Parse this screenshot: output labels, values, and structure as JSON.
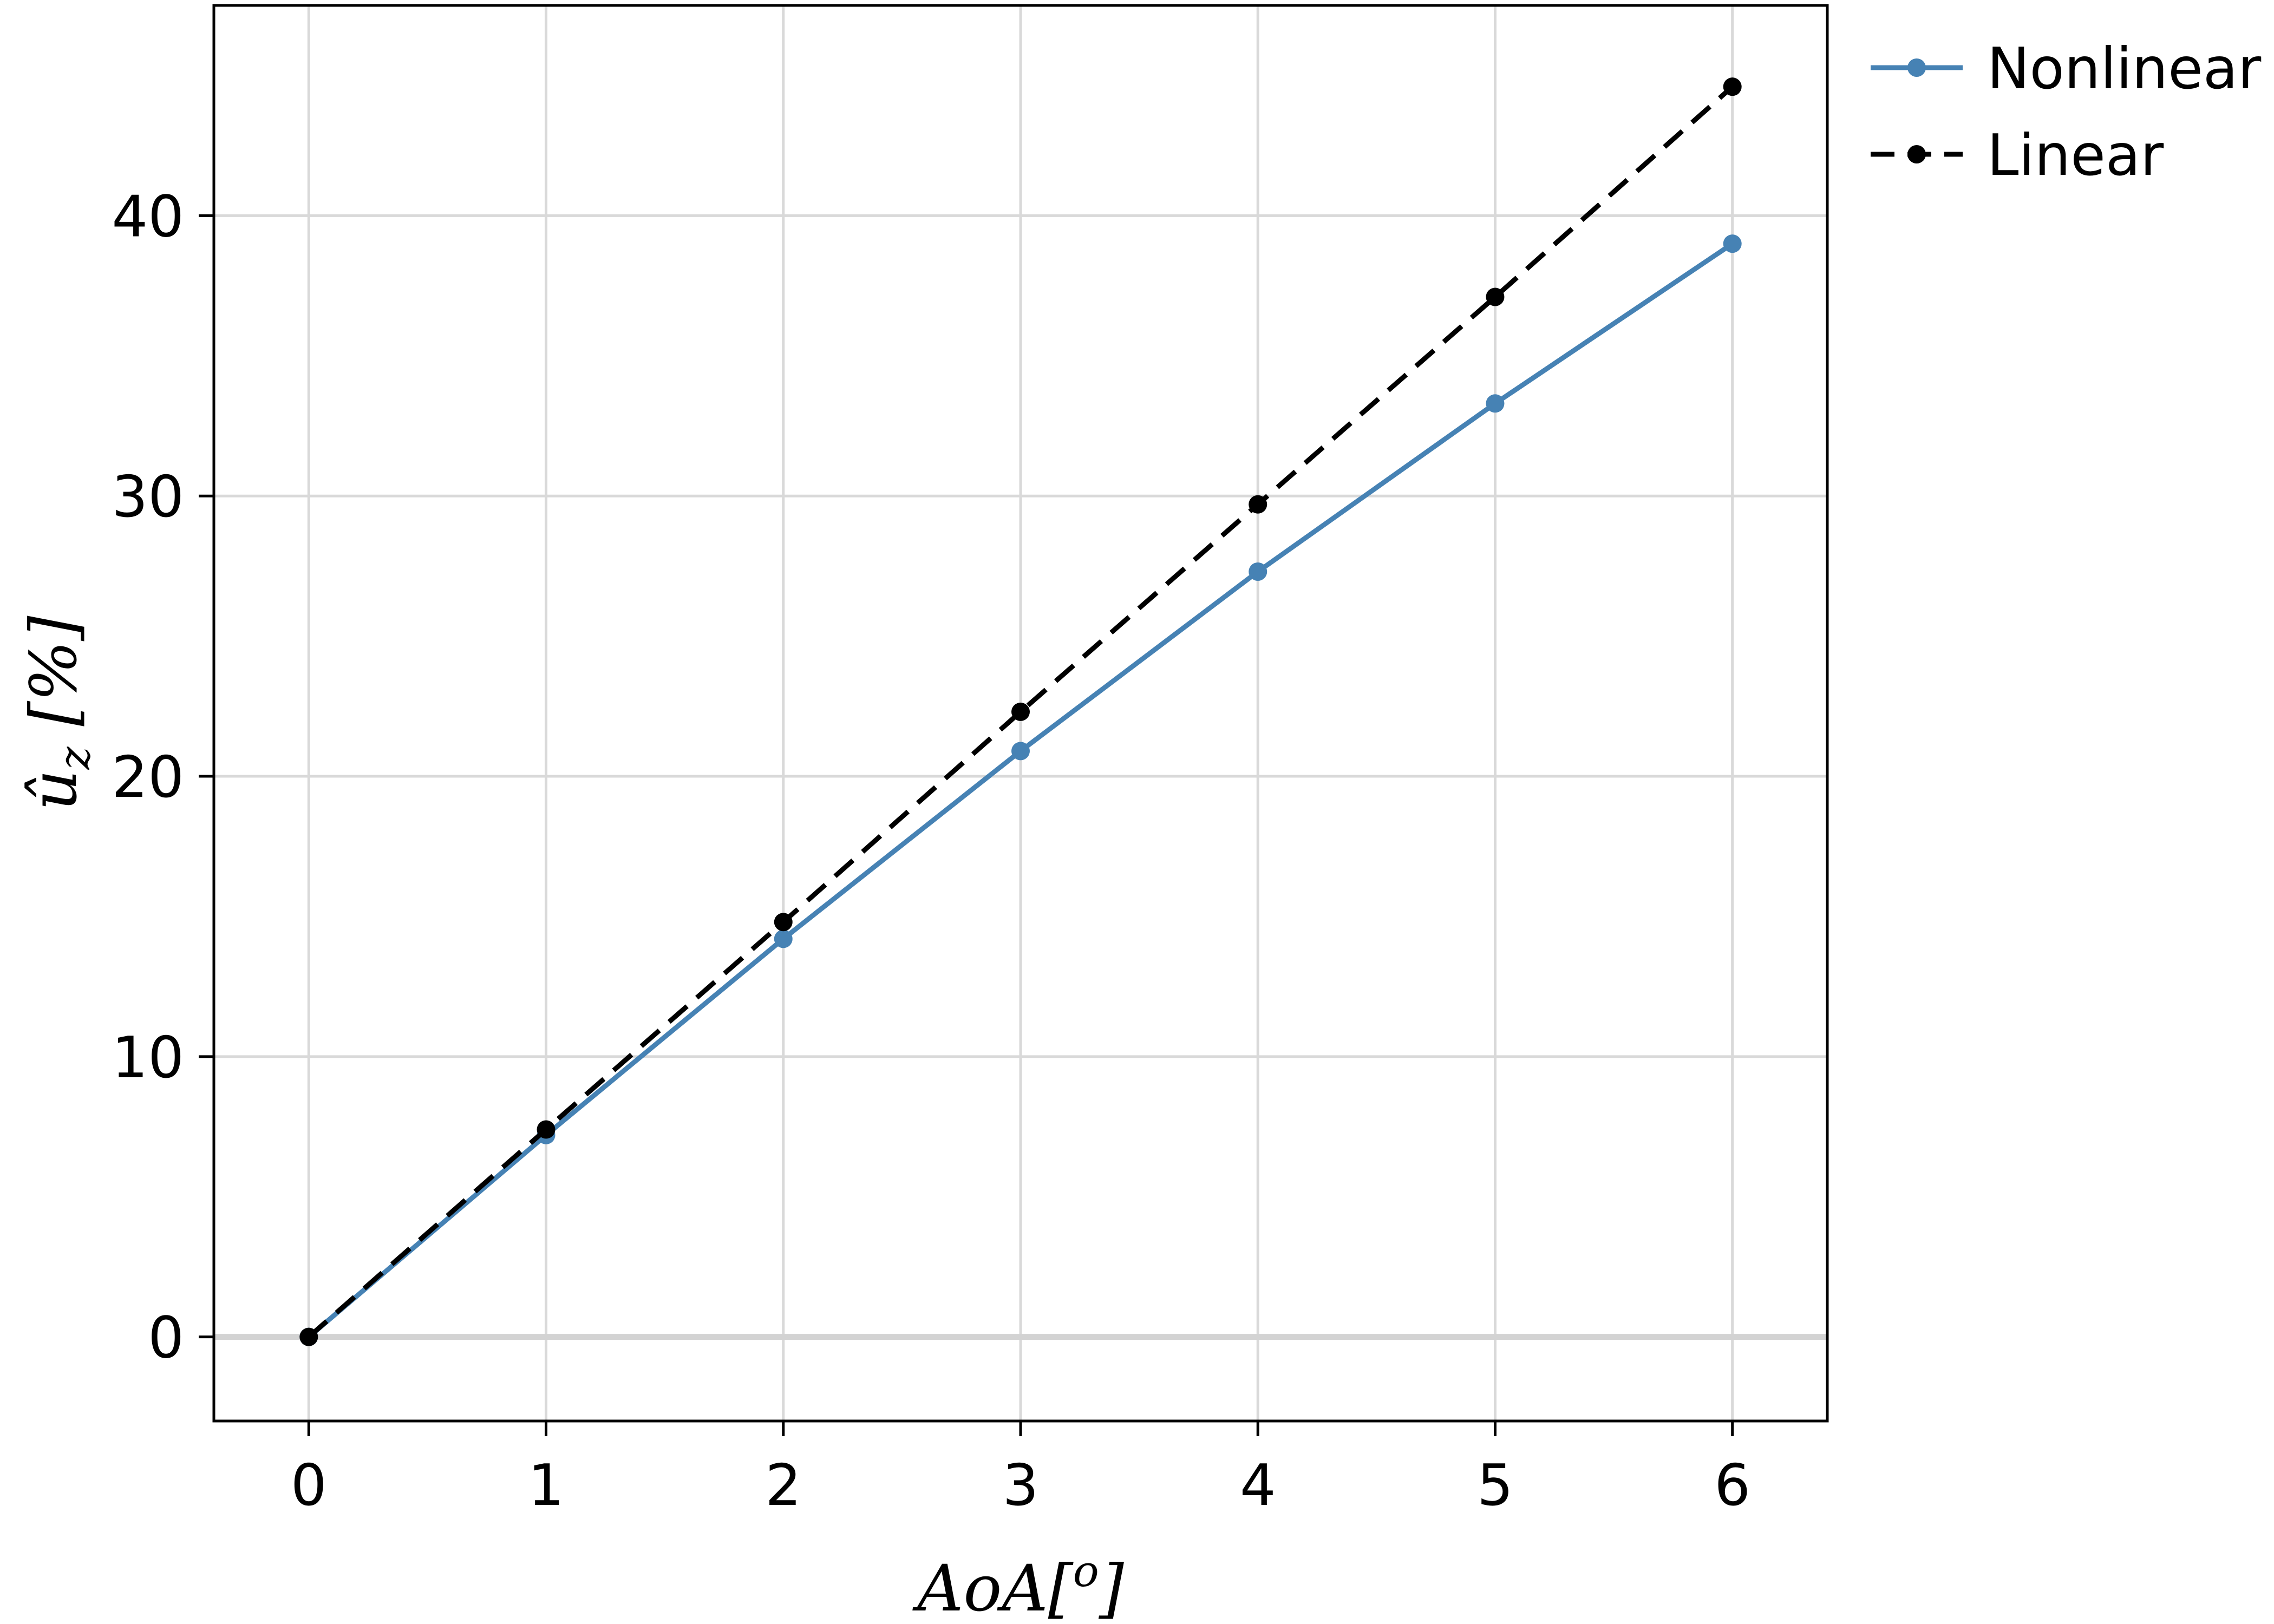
{
  "chart_data": {
    "type": "line",
    "title": "",
    "xlabel": "AoA[o]",
    "xlabel_parts": {
      "main": "AoA[",
      "sup": "o",
      "close": "]"
    },
    "ylabel": "û_z [%]",
    "ylabel_parts": {
      "main": "û",
      "sub": "z",
      "unit": " [%]"
    },
    "xlim": [
      -0.4,
      6.4
    ],
    "ylim": [
      -3,
      47.5
    ],
    "xticks": [
      0,
      1,
      2,
      3,
      4,
      5,
      6
    ],
    "yticks": [
      0,
      10,
      20,
      30,
      40
    ],
    "xtick_labels": [
      "0",
      "1",
      "2",
      "3",
      "4",
      "5",
      "6"
    ],
    "ytick_labels": [
      "0",
      "10",
      "20",
      "30",
      "40"
    ],
    "grid": true,
    "legend_position": "outside-top-right",
    "x": [
      0,
      1,
      2,
      3,
      4,
      5,
      6
    ],
    "series": [
      {
        "name": "Nonlinear",
        "values": [
          0,
          7.2,
          14.2,
          20.9,
          27.3,
          33.3,
          39.0
        ],
        "color": "#4682b4",
        "dash": "solid"
      },
      {
        "name": "Linear",
        "values": [
          0,
          7.4,
          14.8,
          22.3,
          29.7,
          37.1,
          44.6
        ],
        "color": "#000000",
        "dash": "dashed"
      }
    ]
  }
}
